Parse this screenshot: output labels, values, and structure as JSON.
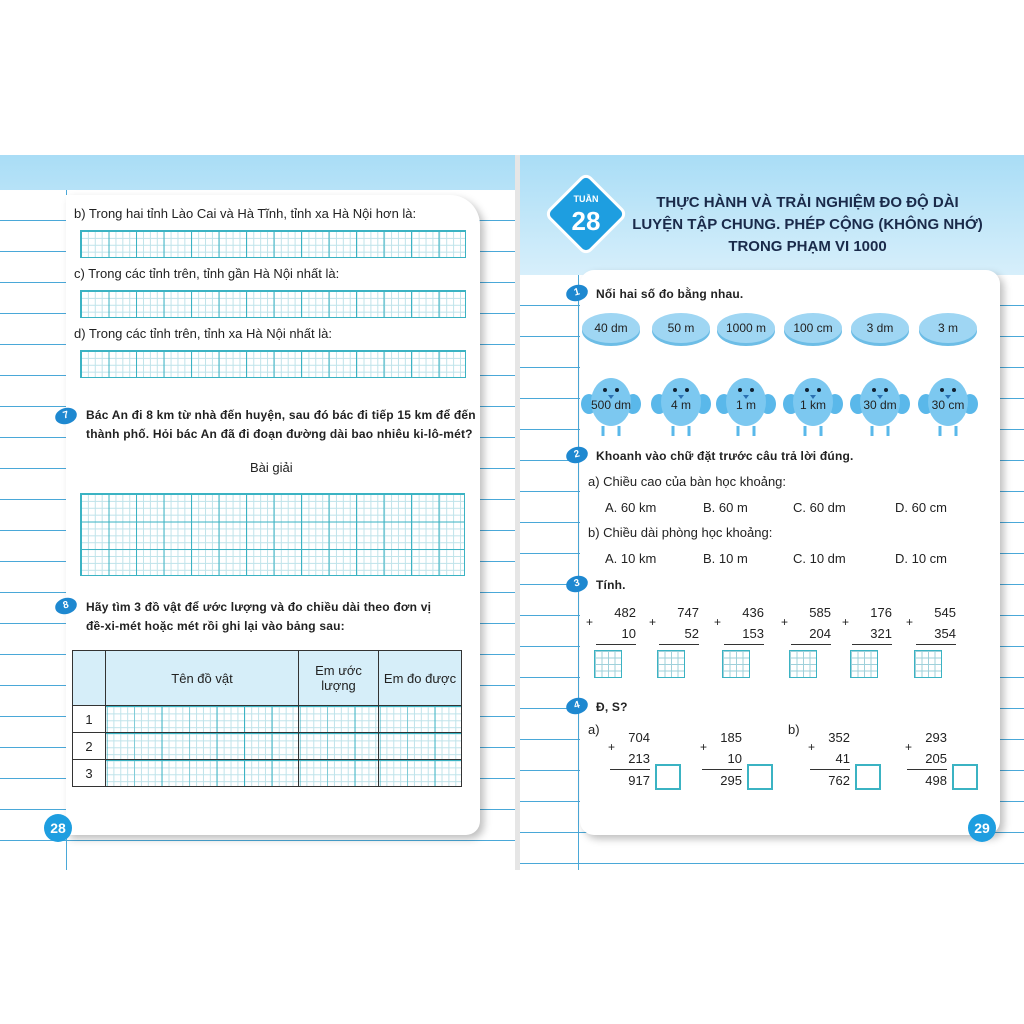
{
  "left": {
    "q_b": "b) Trong hai tỉnh Lào Cai và Hà Tĩnh, tỉnh xa Hà Nội hơn là:",
    "q_c": "c) Trong các tỉnh trên, tỉnh gần Hà Nội nhất là:",
    "q_d": "d) Trong các tỉnh trên, tỉnh xa Hà Nội nhất là:",
    "q7_num": "7",
    "q7_line1": "Bác An đi 8 km từ nhà đến huyện, sau đó bác đi tiếp 15 km để đến",
    "q7_line2": "thành phố. Hỏi bác An đã đi đoạn đường dài bao nhiêu ki-lô-mét?",
    "solution_label": "Bài giải",
    "q8_num": "8",
    "q8_line1": "Hãy tìm 3 đồ vật để ước lượng và đo chiều dài theo đơn vị",
    "q8_line2": "đề-xi-mét hoặc mét rồi ghi lại vào bảng sau:",
    "table": {
      "headers": [
        "",
        "Tên đồ vật",
        "Em ước lượng",
        "Em đo được"
      ],
      "rows": [
        "1",
        "2",
        "3"
      ]
    },
    "page_number": "28"
  },
  "right": {
    "week_label": "TUẦN",
    "week_number": "28",
    "title_lines": [
      "THỰC HÀNH VÀ TRẢI NGHIỆM ĐO ĐỘ DÀI",
      "LUYỆN TẬP CHUNG. PHÉP CỘNG (KHÔNG NHỚ)",
      "TRONG PHẠM VI 1000"
    ],
    "q1": {
      "num": "1",
      "text": "Nối hai số đo bằng nhau.",
      "ovals": [
        "40 dm",
        "50 m",
        "1000 m",
        "100 cm",
        "3 dm",
        "3 m"
      ],
      "birds": [
        "500 dm",
        "4 m",
        "1 m",
        "1 km",
        "30 dm",
        "30 cm"
      ]
    },
    "q2": {
      "num": "2",
      "text": "Khoanh vào chữ đặt trước câu trả lời đúng.",
      "a": {
        "question": "a) Chiều cao của bàn học khoảng:",
        "options": [
          "A. 60 km",
          "B. 60 m",
          "C. 60 dm",
          "D. 60 cm"
        ]
      },
      "b": {
        "question": "b) Chiều dài phòng học khoảng:",
        "options": [
          "A. 10 km",
          "B. 10 m",
          "C. 10 dm",
          "D. 10 cm"
        ]
      }
    },
    "q3": {
      "num": "3",
      "text": "Tính.",
      "sums": [
        [
          "482",
          "10"
        ],
        [
          "747",
          "52"
        ],
        [
          "436",
          "153"
        ],
        [
          "585",
          "204"
        ],
        [
          "176",
          "321"
        ],
        [
          "545",
          "354"
        ]
      ]
    },
    "q4": {
      "num": "4",
      "text": "Đ, S?",
      "label_a": "a)",
      "label_b": "b)",
      "sums": [
        [
          "704",
          "213",
          "917"
        ],
        [
          "185",
          "10",
          "295"
        ],
        [
          "352",
          "41",
          "762"
        ],
        [
          "293",
          "205",
          "498"
        ]
      ]
    },
    "page_number": "29",
    "colors": {
      "accent": "#1e88d0",
      "grid": "#3bb3c3",
      "band": "#a9ddf6"
    }
  }
}
